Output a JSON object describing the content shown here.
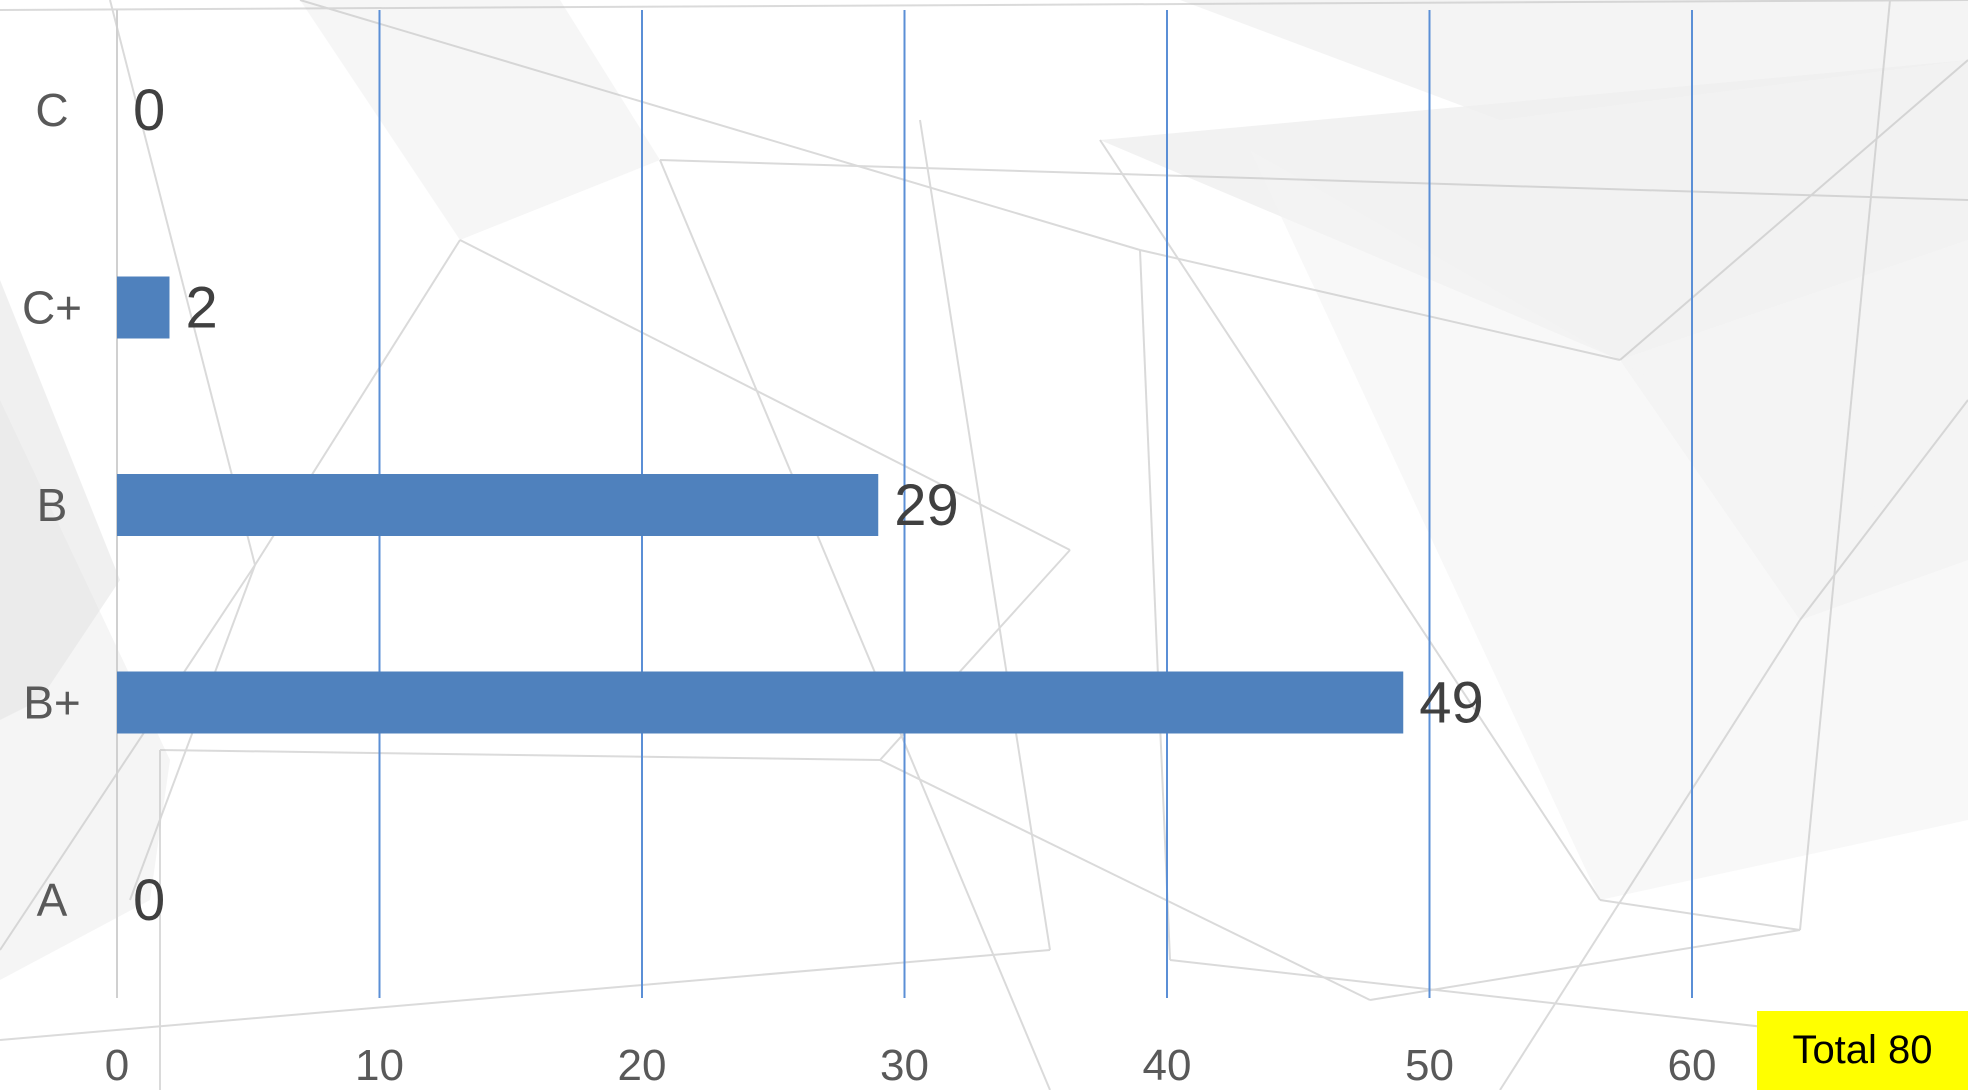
{
  "chart_data": {
    "type": "bar",
    "orientation": "horizontal",
    "categories": [
      "C",
      "C+",
      "B",
      "B+",
      "A"
    ],
    "values": [
      0,
      2,
      29,
      49,
      0
    ],
    "title": "",
    "xlabel": "",
    "ylabel": "",
    "xlim": [
      0,
      65
    ],
    "x_ticks": [
      0,
      10,
      20,
      30,
      40,
      50,
      60
    ],
    "grid": "vertical",
    "legend": "none",
    "colors": {
      "bar": "#4f81bd",
      "gridline": "#5b8fd6",
      "axis": "#d0d0d0"
    }
  },
  "annotation": {
    "total_label": "Total 80"
  }
}
